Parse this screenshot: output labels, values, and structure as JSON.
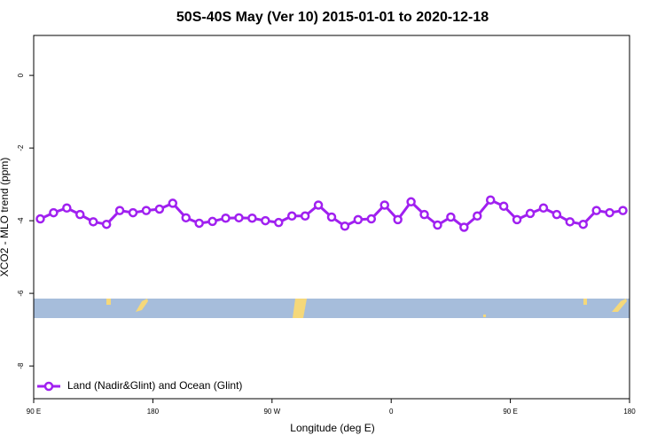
{
  "chart_data": {
    "type": "line",
    "title": "50S-40S May (Ver 10)   2015-01-01 to 2020-12-18",
    "x_label": "Longitude (deg E)",
    "y_label": "XCO2 - MLO trend (ppm)",
    "x": [
      95,
      105,
      115,
      125,
      135,
      145,
      155,
      165,
      175,
      185,
      195,
      205,
      215,
      225,
      235,
      245,
      255,
      265,
      275,
      285,
      295,
      305,
      315,
      325,
      335,
      345,
      355,
      365,
      375,
      385,
      395,
      405,
      415,
      425,
      435,
      445,
      455,
      465,
      475,
      485,
      495,
      505,
      515,
      525,
      535
    ],
    "series": [
      {
        "name": "Land (Nadir&Glint) and Ocean (Glint)",
        "color": "#a020f0",
        "values": [
          -3.95,
          -3.78,
          -3.65,
          -3.83,
          -4.03,
          -4.1,
          -3.72,
          -3.78,
          -3.72,
          -3.68,
          -3.52,
          -3.92,
          -4.07,
          -4.02,
          -3.93,
          -3.92,
          -3.93,
          -4.0,
          -4.05,
          -3.87,
          -3.87,
          -3.57,
          -3.9,
          -4.15,
          -3.97,
          -3.95,
          -3.57,
          -3.97,
          -3.48,
          -3.83,
          -4.12,
          -3.9,
          -4.18,
          -3.87,
          -3.43,
          -3.6,
          -3.97,
          -3.8,
          -3.65,
          -3.83,
          -4.03,
          -4.1,
          -3.72,
          -3.78,
          -3.72
        ]
      }
    ],
    "xlim": [
      90,
      540
    ],
    "ylim": [
      -8.9,
      1.1
    ],
    "xticks": [
      {
        "value": 90,
        "label": "90 E"
      },
      180,
      {
        "value": 270,
        "label": "90 W"
      },
      {
        "value": 360,
        "label": "0"
      },
      {
        "value": 450,
        "label": "90 E"
      },
      {
        "value": 540,
        "label": "180"
      }
    ],
    "yticks": [
      0,
      -2,
      -4,
      -6,
      -8
    ],
    "grid": false,
    "legend": "bottom left"
  }
}
